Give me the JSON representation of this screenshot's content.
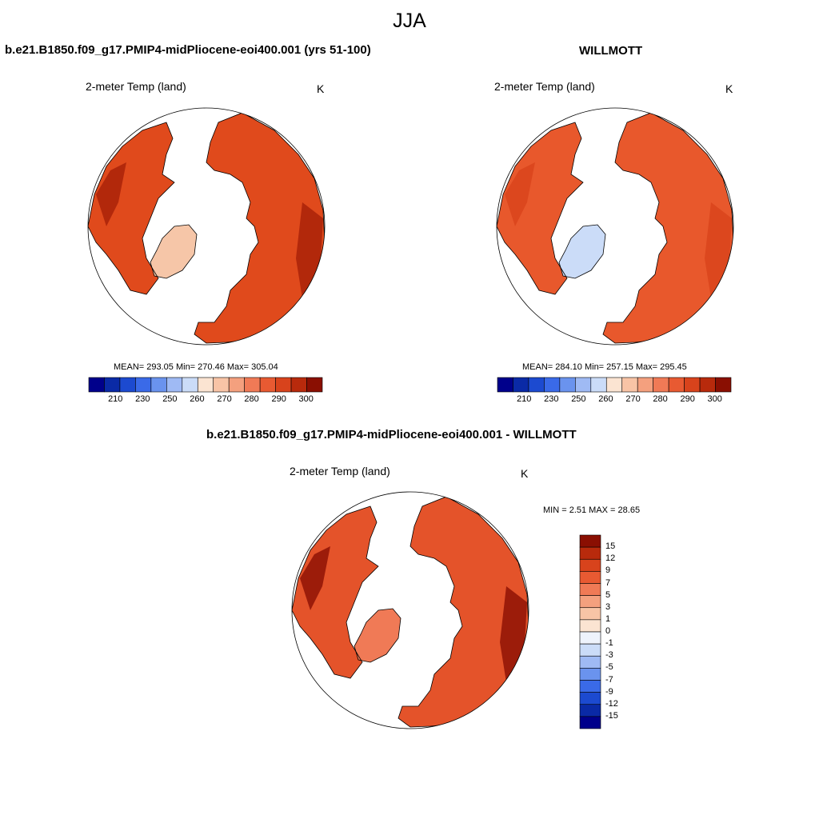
{
  "suptitle": "JJA",
  "panels": [
    {
      "title": "b.e21.B1850.f09_g17.PMIP4-midPliocene-eoi400.001 (yrs 51-100)",
      "field": "2-meter Temp (land)",
      "units": "K",
      "stats": "MEAN= 293.05  Min= 270.46  Max= 305.04",
      "colorbar": {
        "ticks": [
          "210",
          "230",
          "250",
          "260",
          "270",
          "280",
          "290",
          "300"
        ],
        "colors": [
          "#00008b",
          "#0a2aa6",
          "#1c4ad0",
          "#3a6ae8",
          "#6a93ee",
          "#9fbaf4",
          "#cbdcf8",
          "#fbe4d2",
          "#f8c4a6",
          "#f4a07e",
          "#f07a56",
          "#e85a32",
          "#d8431c",
          "#b82a0c",
          "#8a0f02"
        ]
      },
      "map": {
        "fill": "#e04a1c",
        "warm": "#a61f08",
        "cool": "#f6c6a8"
      }
    },
    {
      "title": "WILLMOTT",
      "field": "2-meter Temp (land)",
      "units": "K",
      "stats": "MEAN= 284.10  Min= 257.15  Max= 295.45",
      "colorbar": {
        "ticks": [
          "210",
          "230",
          "250",
          "260",
          "270",
          "280",
          "290",
          "300"
        ],
        "colors": [
          "#00008b",
          "#0a2aa6",
          "#1c4ad0",
          "#3a6ae8",
          "#6a93ee",
          "#9fbaf4",
          "#cbdcf8",
          "#fbe4d2",
          "#f8c4a6",
          "#f4a07e",
          "#f07a56",
          "#e85a32",
          "#d8431c",
          "#b82a0c",
          "#8a0f02"
        ]
      },
      "map": {
        "fill": "#e8582c",
        "warm": "#d8431c",
        "cool": "#cbdcf8"
      }
    },
    {
      "title": "b.e21.B1850.f09_g17.PMIP4-midPliocene-eoi400.001 - WILLMOTT",
      "field": "2-meter Temp (land)",
      "units": "K",
      "stats": "MIN =   2.51 MAX =  28.65",
      "colorbar": {
        "ticks": [
          "15",
          "12",
          "9",
          "7",
          "5",
          "3",
          "1",
          "0",
          "-1",
          "-3",
          "-5",
          "-7",
          "-9",
          "-12",
          "-15"
        ],
        "colors": [
          "#8a0f02",
          "#b82a0c",
          "#d8431c",
          "#e85a32",
          "#f07a56",
          "#f4a07e",
          "#f8c4a6",
          "#fbe4d2",
          "#eef3fc",
          "#cbdcf8",
          "#9fbaf4",
          "#6a93ee",
          "#3a6ae8",
          "#1c4ad0",
          "#0a2aa6",
          "#00008b"
        ]
      },
      "map": {
        "fill": "#e4532a",
        "warm": "#8a0f02",
        "cool": "#f07a56"
      }
    }
  ]
}
